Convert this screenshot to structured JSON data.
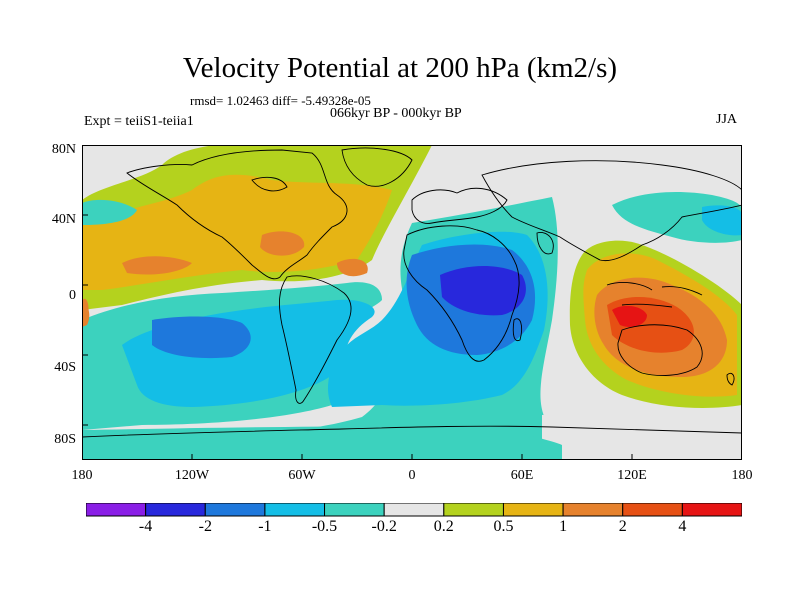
{
  "title": "Velocity Potential at 200 hPa (km2/s)",
  "stats": "rmsd= 1.02463 diff= -5.49328e-05",
  "period": "066kyr BP - 000kyr BP",
  "experiment": "Expt = teiiS1-teiia1",
  "season": "JJA",
  "map": {
    "projection": "cylindrical equidistant",
    "lon_range": [
      -180,
      180
    ],
    "lat_range": [
      -90,
      90
    ],
    "y_ticks": [
      "80N",
      "40N",
      "0",
      "40S",
      "80S"
    ],
    "x_ticks": [
      "180",
      "120W",
      "60W",
      "0",
      "60E",
      "120E",
      "180"
    ]
  },
  "colorbar": {
    "labels": [
      "-4",
      "-2",
      "-1",
      "-0.5",
      "-0.2",
      "0.2",
      "0.5",
      "1",
      "2",
      "4"
    ],
    "colors": [
      "#8a1ee6",
      "#2828dc",
      "#1e78dc",
      "#14bee6",
      "#3cd2be",
      "#e6e6e6",
      "#b4d21e",
      "#e6b414",
      "#e6822d",
      "#e65014",
      "#e61414"
    ]
  }
}
